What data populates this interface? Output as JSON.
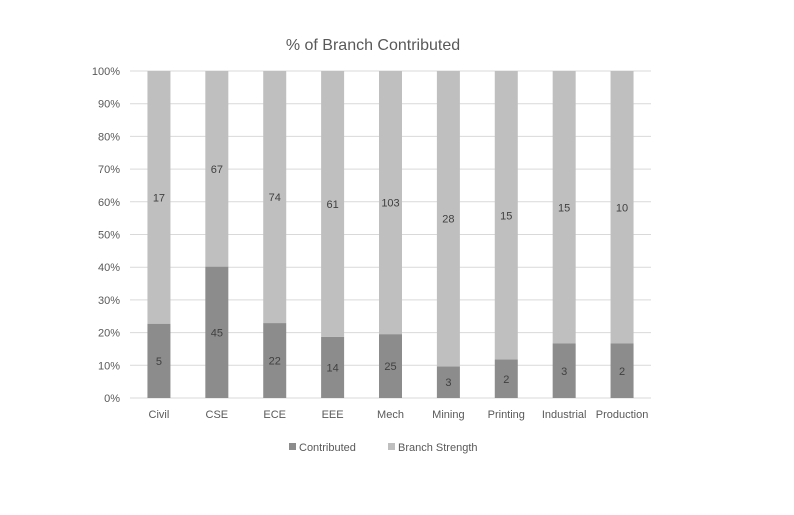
{
  "chart_data": {
    "type": "bar",
    "stacking": "percent",
    "title": "% of Branch Contributed",
    "categories": [
      "Civil",
      "CSE",
      "ECE",
      "EEE",
      "Mech",
      "Mining",
      "Printing",
      "Industrial",
      "Production"
    ],
    "series": [
      {
        "name": "Contributed",
        "values": [
          5,
          45,
          22,
          14,
          25,
          3,
          2,
          3,
          2
        ],
        "color": "#8c8c8c"
      },
      {
        "name": "Branch Strength",
        "values": [
          17,
          67,
          74,
          61,
          103,
          28,
          15,
          15,
          10
        ],
        "color": "#bfbfbf"
      }
    ],
    "yticks": [
      "0%",
      "10%",
      "20%",
      "30%",
      "40%",
      "50%",
      "60%",
      "70%",
      "80%",
      "90%",
      "100%"
    ],
    "ylim": [
      0,
      100
    ],
    "grid": true,
    "legend": "bottom"
  }
}
